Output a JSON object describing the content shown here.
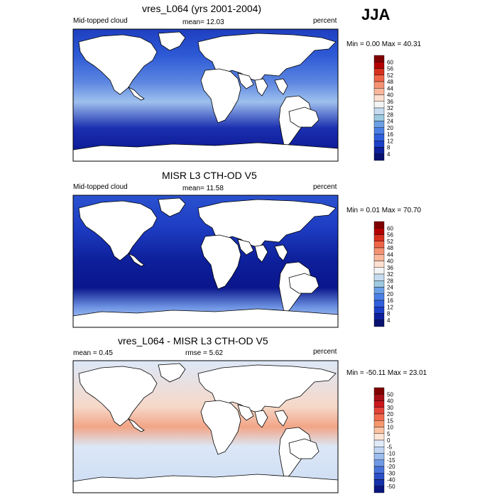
{
  "season": "JJA",
  "panels": [
    {
      "title": "vres_L064 (yrs 2001-2004)",
      "left_label": "Mid-topped cloud",
      "mid_label": "mean=  12.03",
      "right_label": "percent",
      "stats": "Min =   0.00 Max =  40.31",
      "colorbar": {
        "levels": [
          "60",
          "56",
          "52",
          "48",
          "44",
          "40",
          "36",
          "32",
          "28",
          "24",
          "20",
          "16",
          "12",
          "8",
          "4"
        ],
        "colors": [
          "#7f0000",
          "#b30000",
          "#d7301f",
          "#ef6548",
          "#f49273",
          "#fbb79b",
          "#fde0d0",
          "#f4f4f4",
          "#c6dbef",
          "#9ecae1",
          "#6b9fe6",
          "#4a7fe5",
          "#2f5fdc",
          "#1c3fc8",
          "#0d1f9a",
          "#071170"
        ]
      },
      "map": {
        "ocean_gradient": [
          {
            "stop": "0",
            "color": "#1e3fc0"
          },
          {
            "stop": "0.2",
            "color": "#2e5ad6"
          },
          {
            "stop": "0.4",
            "color": "#5c86e0"
          },
          {
            "stop": "0.55",
            "color": "#9ec0ee"
          },
          {
            "stop": "0.75",
            "color": "#1b2fb0"
          },
          {
            "stop": "1",
            "color": "#07118a"
          }
        ]
      }
    },
    {
      "title": "MISR L3 CTH-OD V5",
      "left_label": "Mid-topped cloud",
      "mid_label": "mean=  11.58",
      "right_label": "percent",
      "stats": "Min =   0.01 Max =  70.70",
      "colorbar": {
        "levels": [
          "60",
          "56",
          "52",
          "48",
          "44",
          "40",
          "36",
          "32",
          "28",
          "24",
          "20",
          "16",
          "12",
          "8",
          "4"
        ],
        "colors": [
          "#7f0000",
          "#b30000",
          "#d7301f",
          "#ef6548",
          "#f49273",
          "#fbb79b",
          "#fde0d0",
          "#f4f4f4",
          "#c6dbef",
          "#9ecae1",
          "#6b9fe6",
          "#4a7fe5",
          "#2f5fdc",
          "#1c3fc8",
          "#0d1f9a",
          "#071170"
        ]
      },
      "map": {
        "ocean_gradient": [
          {
            "stop": "0",
            "color": "#2a52d0"
          },
          {
            "stop": "0.25",
            "color": "#1d3cc2"
          },
          {
            "stop": "0.5",
            "color": "#0d1f9a"
          },
          {
            "stop": "0.7",
            "color": "#0a168c"
          },
          {
            "stop": "0.85",
            "color": "#6f95e4"
          },
          {
            "stop": "1",
            "color": "#c9d9f4"
          }
        ]
      }
    },
    {
      "title": "vres_L064 - MISR L3 CTH-OD V5",
      "left_label": "mean =   0.45",
      "mid_label": "rmse =    5.62",
      "right_label": "percent",
      "stats": "Min = -50.11 Max =  23.01",
      "colorbar": {
        "levels": [
          "50",
          "40",
          "30",
          "20",
          "15",
          "10",
          "5",
          "0",
          "-5",
          "-10",
          "-15",
          "-20",
          "-30",
          "-40",
          "-50"
        ],
        "colors": [
          "#7f0000",
          "#a50f15",
          "#cb181d",
          "#e3443a",
          "#f26b4f",
          "#f7976e",
          "#fbc2a3",
          "#fde6d8",
          "#e1ebf8",
          "#c2d6f4",
          "#9cbdee",
          "#7099e4",
          "#4873da",
          "#2c50c8",
          "#1530a8",
          "#0a1680"
        ]
      },
      "map": {
        "ocean_gradient": [
          {
            "stop": "0",
            "color": "#dde8f8"
          },
          {
            "stop": "0.35",
            "color": "#f6d8c8"
          },
          {
            "stop": "0.5",
            "color": "#f2a586"
          },
          {
            "stop": "0.65",
            "color": "#dce7f7"
          },
          {
            "stop": "1",
            "color": "#ccdcf4"
          }
        ]
      }
    }
  ]
}
